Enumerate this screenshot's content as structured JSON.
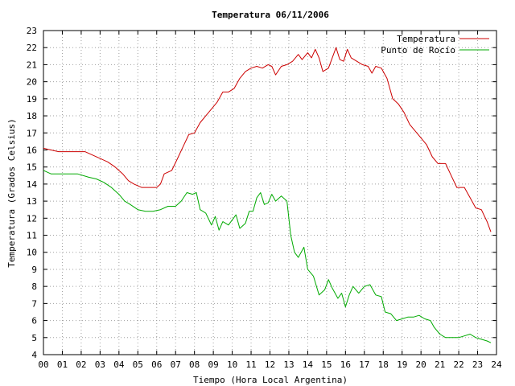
{
  "chart_data": {
    "type": "line",
    "title": "Temperatura 06/11/2006",
    "xlabel": "Tiempo (Hora Local Argentina)",
    "ylabel": "Temperatura (Grados Celsius)",
    "xlim": [
      0,
      24
    ],
    "ylim": [
      4,
      23
    ],
    "xticks": [
      "00",
      "01",
      "02",
      "03",
      "04",
      "05",
      "06",
      "07",
      "08",
      "09",
      "10",
      "11",
      "12",
      "13",
      "14",
      "15",
      "16",
      "17",
      "18",
      "19",
      "20",
      "21",
      "22",
      "23",
      "24"
    ],
    "yticks": [
      "4",
      "5",
      "6",
      "7",
      "8",
      "9",
      "10",
      "11",
      "12",
      "13",
      "14",
      "15",
      "16",
      "17",
      "18",
      "19",
      "20",
      "21",
      "22",
      "23"
    ],
    "grid": true,
    "legend_position": "top-right",
    "series": [
      {
        "name": "Temperatura",
        "color": "#cc0000",
        "points": [
          [
            0.0,
            16.1
          ],
          [
            0.4,
            16.0
          ],
          [
            0.8,
            15.9
          ],
          [
            1.5,
            15.9
          ],
          [
            2.2,
            15.9
          ],
          [
            2.6,
            15.7
          ],
          [
            3.0,
            15.5
          ],
          [
            3.4,
            15.3
          ],
          [
            3.8,
            15.0
          ],
          [
            4.2,
            14.6
          ],
          [
            4.5,
            14.2
          ],
          [
            4.8,
            14.0
          ],
          [
            5.2,
            13.8
          ],
          [
            5.6,
            13.8
          ],
          [
            6.0,
            13.8
          ],
          [
            6.2,
            14.0
          ],
          [
            6.4,
            14.6
          ],
          [
            6.8,
            14.8
          ],
          [
            7.1,
            15.5
          ],
          [
            7.4,
            16.2
          ],
          [
            7.7,
            16.9
          ],
          [
            8.0,
            17.0
          ],
          [
            8.3,
            17.6
          ],
          [
            8.6,
            18.0
          ],
          [
            8.9,
            18.4
          ],
          [
            9.2,
            18.8
          ],
          [
            9.5,
            19.4
          ],
          [
            9.8,
            19.4
          ],
          [
            10.1,
            19.6
          ],
          [
            10.4,
            20.2
          ],
          [
            10.7,
            20.6
          ],
          [
            11.0,
            20.8
          ],
          [
            11.3,
            20.9
          ],
          [
            11.6,
            20.8
          ],
          [
            11.9,
            21.0
          ],
          [
            12.1,
            20.9
          ],
          [
            12.3,
            20.4
          ],
          [
            12.6,
            20.9
          ],
          [
            12.9,
            21.0
          ],
          [
            13.2,
            21.2
          ],
          [
            13.5,
            21.6
          ],
          [
            13.7,
            21.3
          ],
          [
            14.0,
            21.7
          ],
          [
            14.2,
            21.4
          ],
          [
            14.4,
            21.9
          ],
          [
            14.6,
            21.4
          ],
          [
            14.8,
            20.6
          ],
          [
            15.1,
            20.8
          ],
          [
            15.3,
            21.4
          ],
          [
            15.5,
            22.0
          ],
          [
            15.7,
            21.3
          ],
          [
            15.9,
            21.2
          ],
          [
            16.1,
            21.9
          ],
          [
            16.3,
            21.4
          ],
          [
            16.6,
            21.2
          ],
          [
            16.9,
            21.0
          ],
          [
            17.2,
            20.9
          ],
          [
            17.4,
            20.5
          ],
          [
            17.6,
            20.9
          ],
          [
            17.9,
            20.8
          ],
          [
            18.2,
            20.2
          ],
          [
            18.5,
            19.0
          ],
          [
            18.8,
            18.7
          ],
          [
            19.1,
            18.2
          ],
          [
            19.4,
            17.5
          ],
          [
            19.7,
            17.1
          ],
          [
            20.0,
            16.7
          ],
          [
            20.3,
            16.3
          ],
          [
            20.6,
            15.6
          ],
          [
            20.9,
            15.2
          ],
          [
            21.3,
            15.2
          ],
          [
            21.6,
            14.5
          ],
          [
            21.9,
            13.8
          ],
          [
            22.3,
            13.8
          ],
          [
            22.6,
            13.2
          ],
          [
            22.9,
            12.6
          ],
          [
            23.2,
            12.5
          ],
          [
            23.5,
            11.8
          ],
          [
            23.7,
            11.2
          ]
        ]
      },
      {
        "name": "Punto de Rocío",
        "color": "#00aa00",
        "points": [
          [
            0.0,
            14.8
          ],
          [
            0.4,
            14.6
          ],
          [
            1.0,
            14.6
          ],
          [
            1.8,
            14.6
          ],
          [
            2.4,
            14.4
          ],
          [
            2.8,
            14.3
          ],
          [
            3.2,
            14.1
          ],
          [
            3.6,
            13.8
          ],
          [
            4.0,
            13.4
          ],
          [
            4.3,
            13.0
          ],
          [
            4.6,
            12.8
          ],
          [
            5.0,
            12.5
          ],
          [
            5.4,
            12.4
          ],
          [
            5.8,
            12.4
          ],
          [
            6.2,
            12.5
          ],
          [
            6.6,
            12.7
          ],
          [
            7.0,
            12.7
          ],
          [
            7.3,
            13.0
          ],
          [
            7.6,
            13.5
          ],
          [
            7.9,
            13.4
          ],
          [
            8.1,
            13.5
          ],
          [
            8.3,
            12.5
          ],
          [
            8.6,
            12.3
          ],
          [
            8.9,
            11.6
          ],
          [
            9.1,
            12.1
          ],
          [
            9.3,
            11.3
          ],
          [
            9.5,
            11.8
          ],
          [
            9.8,
            11.6
          ],
          [
            10.0,
            11.9
          ],
          [
            10.2,
            12.2
          ],
          [
            10.4,
            11.4
          ],
          [
            10.7,
            11.7
          ],
          [
            10.9,
            12.4
          ],
          [
            11.1,
            12.4
          ],
          [
            11.3,
            13.2
          ],
          [
            11.5,
            13.5
          ],
          [
            11.7,
            12.8
          ],
          [
            11.9,
            12.9
          ],
          [
            12.1,
            13.4
          ],
          [
            12.3,
            13.0
          ],
          [
            12.6,
            13.3
          ],
          [
            12.9,
            13.0
          ],
          [
            13.1,
            11.0
          ],
          [
            13.3,
            10.0
          ],
          [
            13.5,
            9.7
          ],
          [
            13.8,
            10.3
          ],
          [
            14.0,
            9.0
          ],
          [
            14.3,
            8.6
          ],
          [
            14.6,
            7.5
          ],
          [
            14.9,
            7.8
          ],
          [
            15.1,
            8.4
          ],
          [
            15.3,
            7.9
          ],
          [
            15.6,
            7.3
          ],
          [
            15.8,
            7.6
          ],
          [
            16.0,
            6.8
          ],
          [
            16.2,
            7.5
          ],
          [
            16.4,
            8.0
          ],
          [
            16.7,
            7.6
          ],
          [
            17.0,
            8.0
          ],
          [
            17.3,
            8.1
          ],
          [
            17.6,
            7.5
          ],
          [
            17.9,
            7.4
          ],
          [
            18.1,
            6.5
          ],
          [
            18.4,
            6.4
          ],
          [
            18.7,
            6.0
          ],
          [
            19.0,
            6.1
          ],
          [
            19.3,
            6.2
          ],
          [
            19.6,
            6.2
          ],
          [
            19.9,
            6.3
          ],
          [
            20.2,
            6.1
          ],
          [
            20.5,
            6.0
          ],
          [
            20.7,
            5.6
          ],
          [
            21.0,
            5.2
          ],
          [
            21.3,
            5.0
          ],
          [
            21.6,
            5.0
          ],
          [
            22.0,
            5.0
          ],
          [
            22.3,
            5.1
          ],
          [
            22.6,
            5.2
          ],
          [
            22.9,
            5.0
          ],
          [
            23.2,
            4.9
          ],
          [
            23.5,
            4.8
          ],
          [
            23.7,
            4.7
          ]
        ]
      }
    ]
  }
}
